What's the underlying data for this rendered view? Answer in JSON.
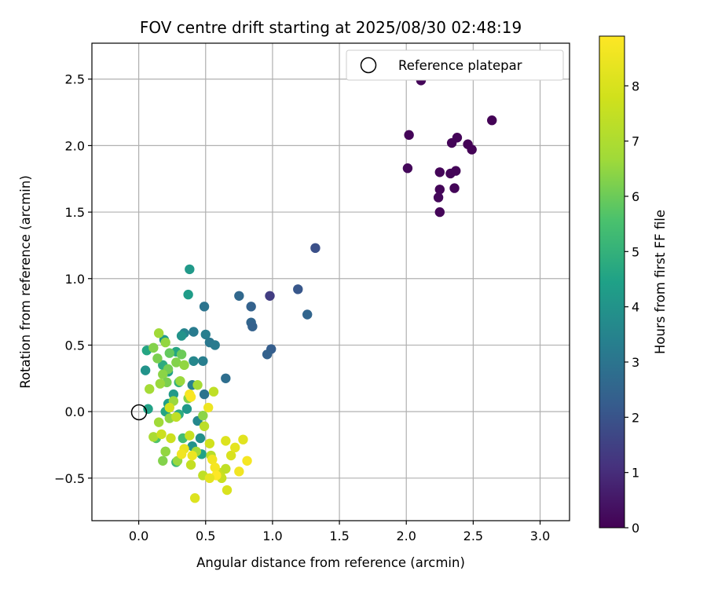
{
  "chart_data": {
    "type": "scatter",
    "title": "FOV centre drift starting at 2025/08/30 02:48:19",
    "xlabel": "Angular distance from reference (arcmin)",
    "ylabel": "Rotation from reference (arcmin)",
    "xlim": [
      -0.35,
      3.22
    ],
    "ylim": [
      -0.82,
      2.77
    ],
    "xticks": [
      0.0,
      0.5,
      1.0,
      1.5,
      2.0,
      2.5,
      3.0
    ],
    "xtick_labels": [
      "0.0",
      "0.5",
      "1.0",
      "1.5",
      "2.0",
      "2.5",
      "3.0"
    ],
    "yticks": [
      -0.5,
      0.0,
      0.5,
      1.0,
      1.5,
      2.0,
      2.5
    ],
    "yticks_labels": [
      "−0.5",
      "0.0",
      "0.5",
      "1.0",
      "1.5",
      "2.0",
      "2.5"
    ],
    "grid": true,
    "legend": {
      "placement": "top-right",
      "label": "Reference platepar"
    },
    "reference_point": {
      "x": 0.0,
      "y": 0.0
    },
    "colorbar": {
      "label": "Hours from first FF file",
      "range": [
        0,
        8.9
      ],
      "ticks": [
        0,
        1,
        2,
        3,
        4,
        5,
        6,
        7,
        8
      ],
      "tick_labels": [
        "0",
        "1",
        "2",
        "3",
        "4",
        "5",
        "6",
        "7",
        "8"
      ],
      "colormap": "viridis"
    },
    "points": [
      {
        "x": 2.64,
        "y": 2.19,
        "t": 0.05
      },
      {
        "x": 2.11,
        "y": 2.49,
        "t": 0.1
      },
      {
        "x": 2.02,
        "y": 2.08,
        "t": 0.1
      },
      {
        "x": 2.01,
        "y": 1.83,
        "t": 0.15
      },
      {
        "x": 2.38,
        "y": 2.06,
        "t": 0.1
      },
      {
        "x": 2.34,
        "y": 2.02,
        "t": 0.1
      },
      {
        "x": 2.46,
        "y": 2.01,
        "t": 0.05
      },
      {
        "x": 2.49,
        "y": 1.97,
        "t": 0.05
      },
      {
        "x": 2.25,
        "y": 1.8,
        "t": 0.1
      },
      {
        "x": 2.33,
        "y": 1.79,
        "t": 0.1
      },
      {
        "x": 2.37,
        "y": 1.81,
        "t": 0.1
      },
      {
        "x": 2.25,
        "y": 1.67,
        "t": 0.1
      },
      {
        "x": 2.36,
        "y": 1.68,
        "t": 0.1
      },
      {
        "x": 2.24,
        "y": 1.61,
        "t": 0.15
      },
      {
        "x": 2.25,
        "y": 1.5,
        "t": 0.1
      },
      {
        "x": 1.32,
        "y": 1.23,
        "t": 1.9
      },
      {
        "x": 0.98,
        "y": 0.87,
        "t": 1.4
      },
      {
        "x": 1.19,
        "y": 0.92,
        "t": 2.1
      },
      {
        "x": 0.75,
        "y": 0.87,
        "t": 2.6
      },
      {
        "x": 0.84,
        "y": 0.79,
        "t": 2.4
      },
      {
        "x": 1.26,
        "y": 0.73,
        "t": 2.5
      },
      {
        "x": 0.84,
        "y": 0.67,
        "t": 2.5
      },
      {
        "x": 0.85,
        "y": 0.64,
        "t": 2.4
      },
      {
        "x": 0.99,
        "y": 0.47,
        "t": 2.3
      },
      {
        "x": 0.96,
        "y": 0.43,
        "t": 2.4
      },
      {
        "x": 0.49,
        "y": 0.79,
        "t": 3.0
      },
      {
        "x": 0.38,
        "y": 1.07,
        "t": 4.2
      },
      {
        "x": 0.37,
        "y": 0.88,
        "t": 4.3
      },
      {
        "x": 0.65,
        "y": 0.25,
        "t": 2.8
      },
      {
        "x": 0.41,
        "y": 0.6,
        "t": 3.2
      },
      {
        "x": 0.34,
        "y": 0.59,
        "t": 3.5
      },
      {
        "x": 0.5,
        "y": 0.58,
        "t": 3.3
      },
      {
        "x": 0.53,
        "y": 0.52,
        "t": 3.1
      },
      {
        "x": 0.57,
        "y": 0.5,
        "t": 3.2
      },
      {
        "x": 0.32,
        "y": 0.57,
        "t": 4.0
      },
      {
        "x": 0.48,
        "y": 0.38,
        "t": 3.3
      },
      {
        "x": 0.41,
        "y": 0.38,
        "t": 3.6
      },
      {
        "x": 0.4,
        "y": 0.2,
        "t": 3.4
      },
      {
        "x": 0.49,
        "y": 0.13,
        "t": 3.0
      },
      {
        "x": 0.06,
        "y": 0.46,
        "t": 4.6
      },
      {
        "x": 0.05,
        "y": 0.31,
        "t": 4.0
      },
      {
        "x": 0.07,
        "y": 0.02,
        "t": 4.5
      },
      {
        "x": 0.19,
        "y": 0.54,
        "t": 4.2
      },
      {
        "x": 0.28,
        "y": 0.45,
        "t": 4.6
      },
      {
        "x": 0.18,
        "y": 0.35,
        "t": 4.8
      },
      {
        "x": 0.22,
        "y": 0.3,
        "t": 4.4
      },
      {
        "x": 0.3,
        "y": 0.22,
        "t": 5.0
      },
      {
        "x": 0.26,
        "y": 0.13,
        "t": 4.2
      },
      {
        "x": 0.22,
        "y": 0.06,
        "t": 4.4
      },
      {
        "x": 0.2,
        "y": 0.0,
        "t": 4.6
      },
      {
        "x": 0.3,
        "y": -0.02,
        "t": 4.8
      },
      {
        "x": 0.36,
        "y": 0.02,
        "t": 4.2
      },
      {
        "x": 0.44,
        "y": -0.07,
        "t": 3.6
      },
      {
        "x": 0.46,
        "y": -0.2,
        "t": 3.9
      },
      {
        "x": 0.4,
        "y": -0.26,
        "t": 4.0
      },
      {
        "x": 0.47,
        "y": -0.32,
        "t": 4.5
      },
      {
        "x": 0.28,
        "y": -0.38,
        "t": 5.2
      },
      {
        "x": 0.33,
        "y": -0.2,
        "t": 5.4
      },
      {
        "x": 0.13,
        "y": -0.2,
        "t": 5.6
      },
      {
        "x": 0.2,
        "y": -0.3,
        "t": 5.4
      },
      {
        "x": 0.11,
        "y": 0.48,
        "t": 6.3
      },
      {
        "x": 0.15,
        "y": 0.59,
        "t": 6.7
      },
      {
        "x": 0.2,
        "y": 0.52,
        "t": 6.5
      },
      {
        "x": 0.14,
        "y": 0.4,
        "t": 6.2
      },
      {
        "x": 0.23,
        "y": 0.44,
        "t": 5.9
      },
      {
        "x": 0.32,
        "y": 0.43,
        "t": 6.0
      },
      {
        "x": 0.22,
        "y": 0.32,
        "t": 6.1
      },
      {
        "x": 0.28,
        "y": 0.37,
        "t": 6.3
      },
      {
        "x": 0.34,
        "y": 0.35,
        "t": 6.5
      },
      {
        "x": 0.18,
        "y": 0.28,
        "t": 6.4
      },
      {
        "x": 0.21,
        "y": 0.22,
        "t": 6.2
      },
      {
        "x": 0.31,
        "y": 0.23,
        "t": 6.6
      },
      {
        "x": 0.08,
        "y": 0.17,
        "t": 6.8
      },
      {
        "x": 0.16,
        "y": 0.21,
        "t": 6.6
      },
      {
        "x": 0.15,
        "y": -0.08,
        "t": 6.7
      },
      {
        "x": 0.23,
        "y": -0.05,
        "t": 6.5
      },
      {
        "x": 0.26,
        "y": 0.08,
        "t": 6.6
      },
      {
        "x": 0.37,
        "y": 0.1,
        "t": 6.3
      },
      {
        "x": 0.44,
        "y": 0.2,
        "t": 6.8
      },
      {
        "x": 0.48,
        "y": -0.03,
        "t": 6.4
      },
      {
        "x": 0.11,
        "y": -0.19,
        "t": 6.9
      },
      {
        "x": 0.2,
        "y": -0.3,
        "t": 6.5
      },
      {
        "x": 0.18,
        "y": -0.37,
        "t": 6.3
      },
      {
        "x": 0.29,
        "y": -0.37,
        "t": 6.6
      },
      {
        "x": 0.43,
        "y": -0.3,
        "t": 6.8
      },
      {
        "x": 0.49,
        "y": -0.11,
        "t": 7.3
      },
      {
        "x": 0.54,
        "y": -0.33,
        "t": 7.2
      },
      {
        "x": 0.56,
        "y": 0.15,
        "t": 7.4
      },
      {
        "x": 0.23,
        "y": 0.03,
        "t": 7.8
      },
      {
        "x": 0.17,
        "y": -0.17,
        "t": 7.7
      },
      {
        "x": 0.24,
        "y": -0.2,
        "t": 7.7
      },
      {
        "x": 0.38,
        "y": -0.18,
        "t": 7.6
      },
      {
        "x": 0.39,
        "y": -0.4,
        "t": 7.5
      },
      {
        "x": 0.48,
        "y": -0.48,
        "t": 7.4
      },
      {
        "x": 0.61,
        "y": -0.46,
        "t": 7.7
      },
      {
        "x": 0.65,
        "y": -0.43,
        "t": 7.4
      },
      {
        "x": 0.53,
        "y": -0.24,
        "t": 7.8
      },
      {
        "x": 0.42,
        "y": -0.65,
        "t": 8.1
      },
      {
        "x": 0.66,
        "y": -0.59,
        "t": 8.0
      },
      {
        "x": 0.62,
        "y": -0.5,
        "t": 7.6
      },
      {
        "x": 0.69,
        "y": -0.33,
        "t": 8.0
      },
      {
        "x": 0.65,
        "y": -0.22,
        "t": 8.1
      },
      {
        "x": 0.72,
        "y": -0.27,
        "t": 8.3
      },
      {
        "x": 0.75,
        "y": -0.45,
        "t": 8.6
      },
      {
        "x": 0.78,
        "y": -0.21,
        "t": 8.2
      },
      {
        "x": 0.81,
        "y": -0.37,
        "t": 8.7
      },
      {
        "x": 0.52,
        "y": 0.03,
        "t": 8.5
      },
      {
        "x": 0.38,
        "y": 0.13,
        "t": 8.7
      },
      {
        "x": 0.39,
        "y": 0.11,
        "t": 8.8
      },
      {
        "x": 0.34,
        "y": -0.28,
        "t": 8.4
      },
      {
        "x": 0.32,
        "y": -0.32,
        "t": 8.6
      },
      {
        "x": 0.4,
        "y": -0.33,
        "t": 8.5
      },
      {
        "x": 0.55,
        "y": -0.36,
        "t": 8.6
      },
      {
        "x": 0.57,
        "y": -0.42,
        "t": 8.7
      },
      {
        "x": 0.58,
        "y": -0.48,
        "t": 8.9
      },
      {
        "x": 0.53,
        "y": -0.5,
        "t": 8.3
      },
      {
        "x": 0.28,
        "y": -0.04,
        "t": 7.4
      }
    ]
  }
}
